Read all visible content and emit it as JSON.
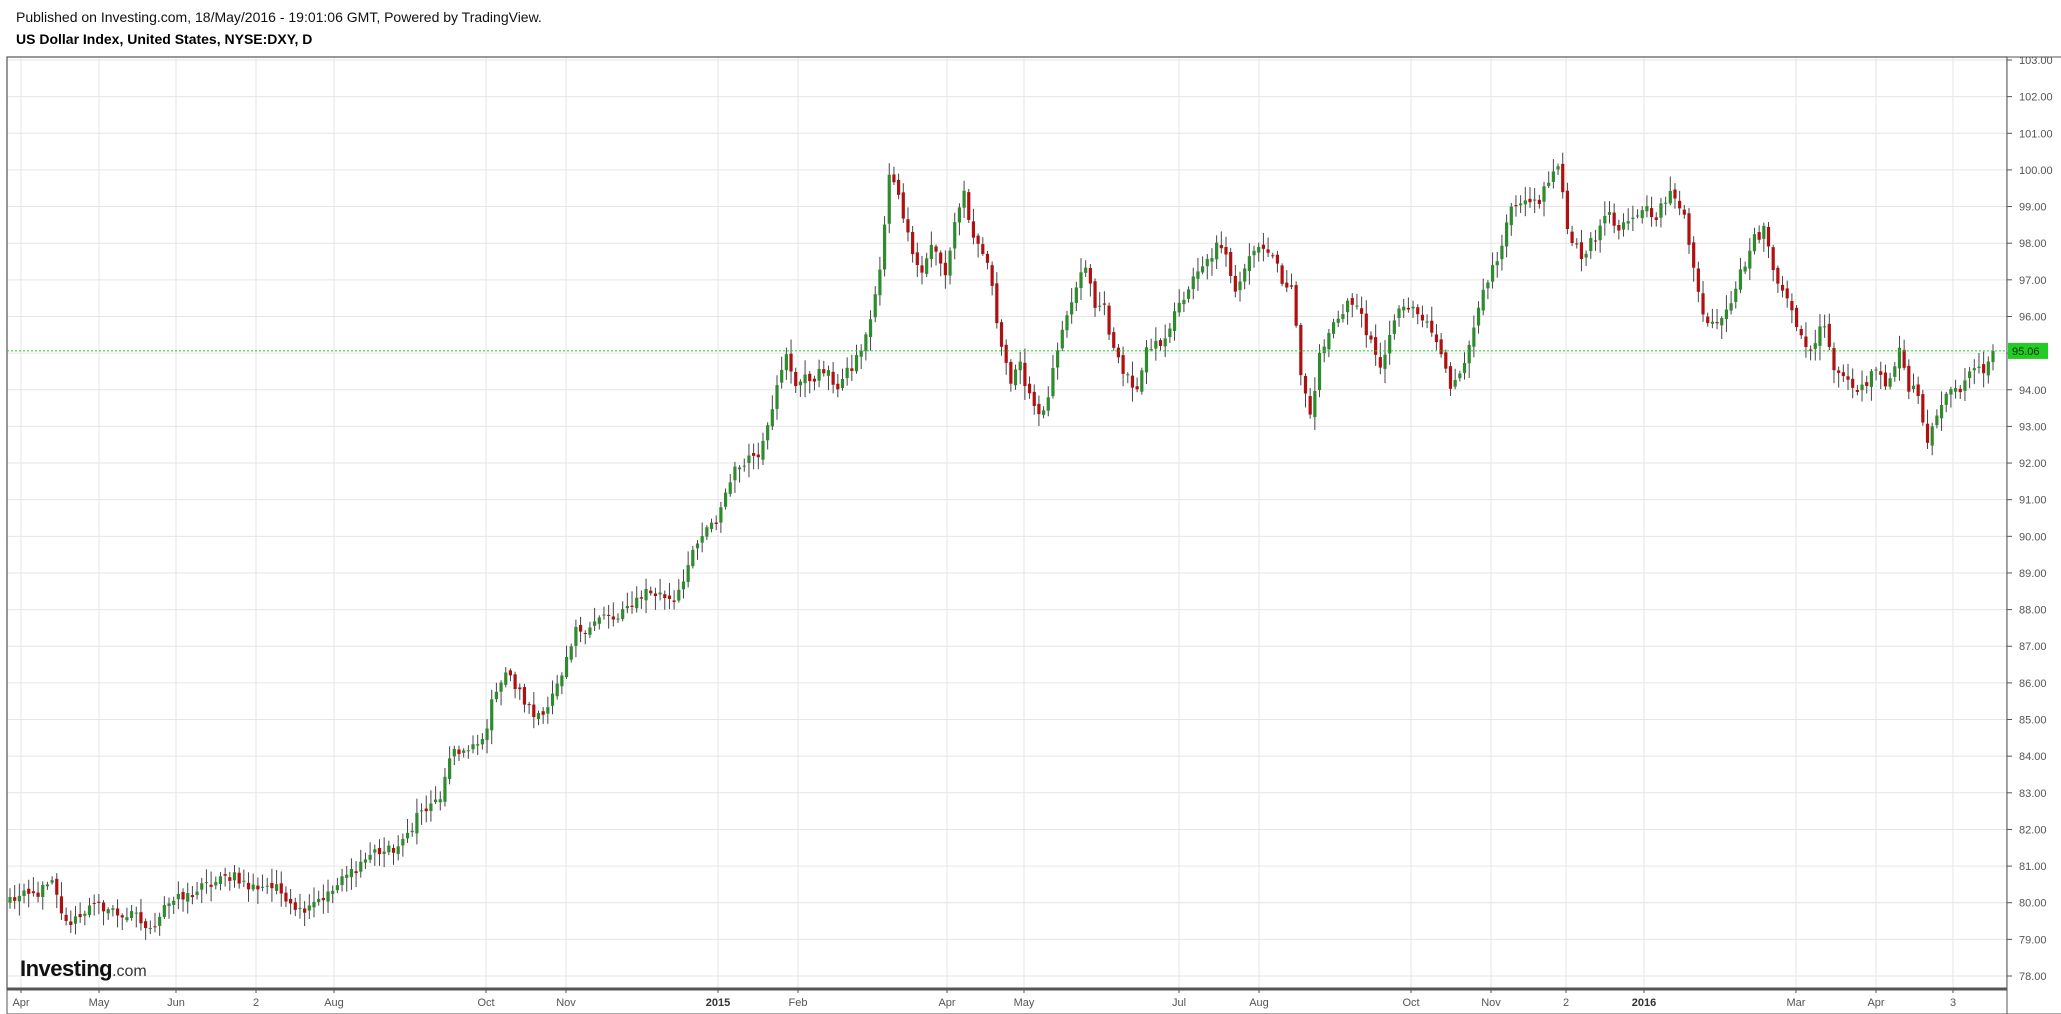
{
  "header": {
    "published": "Published on Investing.com, 18/May/2016 - 19:01:06 GMT, Powered by TradingView.",
    "symbol": "US Dollar Index, United States, NYSE:DXY, D"
  },
  "logo": {
    "main": "Investing",
    "sub": ".com"
  },
  "colors": {
    "up": "#2e8b2e",
    "down": "#b01010",
    "wick": "#444444",
    "grid": "#e6e6e6",
    "last_price_bg": "#22cc22",
    "last_price_line": "#22cc22"
  },
  "chart_data": {
    "type": "candlestick",
    "title": "US Dollar Index, United States, NYSE:DXY, D",
    "ylim": [
      77.6,
      103.0
    ],
    "y_ticks": [
      "78.00",
      "79.00",
      "80.00",
      "81.00",
      "82.00",
      "83.00",
      "84.00",
      "85.00",
      "86.00",
      "87.00",
      "88.00",
      "89.00",
      "90.00",
      "91.00",
      "92.00",
      "93.00",
      "94.00",
      "95.00",
      "96.00",
      "97.00",
      "98.00",
      "99.00",
      "100.00",
      "101.00",
      "102.00",
      "103.00"
    ],
    "x_labels": [
      {
        "label": "Apr",
        "bold": false
      },
      {
        "label": "May",
        "bold": false
      },
      {
        "label": "Jun",
        "bold": false
      },
      {
        "label": "2",
        "bold": false
      },
      {
        "label": "Aug",
        "bold": false
      },
      {
        "label": "Oct",
        "bold": false
      },
      {
        "label": "Nov",
        "bold": false
      },
      {
        "label": "2015",
        "bold": true
      },
      {
        "label": "Feb",
        "bold": false
      },
      {
        "label": "Apr",
        "bold": false
      },
      {
        "label": "May",
        "bold": false
      },
      {
        "label": "Jul",
        "bold": false
      },
      {
        "label": "Aug",
        "bold": false
      },
      {
        "label": "Oct",
        "bold": false
      },
      {
        "label": "Nov",
        "bold": false
      },
      {
        "label": "2",
        "bold": false
      },
      {
        "label": "2016",
        "bold": true
      },
      {
        "label": "Mar",
        "bold": false
      },
      {
        "label": "Apr",
        "bold": false
      },
      {
        "label": "3",
        "bold": false
      }
    ],
    "grid": true,
    "last_price": 95.06,
    "last_price_label": "95.06",
    "close_path": [
      [
        0,
        80.1
      ],
      [
        5,
        80.2
      ],
      [
        9,
        80.5
      ],
      [
        12,
        79.4
      ],
      [
        16,
        79.8
      ],
      [
        20,
        79.9
      ],
      [
        23,
        79.7
      ],
      [
        27,
        79.6
      ],
      [
        30,
        79.2
      ],
      [
        33,
        80.0
      ],
      [
        37,
        80.1
      ],
      [
        41,
        80.4
      ],
      [
        45,
        80.6
      ],
      [
        48,
        80.8
      ],
      [
        51,
        80.4
      ],
      [
        55,
        80.5
      ],
      [
        59,
        80.2
      ],
      [
        62,
        79.8
      ],
      [
        65,
        80.1
      ],
      [
        68,
        80.2
      ],
      [
        71,
        80.6
      ],
      [
        75,
        81.1
      ],
      [
        78,
        81.4
      ],
      [
        81,
        81.4
      ],
      [
        84,
        81.6
      ],
      [
        87,
        82.4
      ],
      [
        90,
        82.6
      ],
      [
        92,
        82.9
      ],
      [
        95,
        84.2
      ],
      [
        98,
        84.1
      ],
      [
        101,
        84.4
      ],
      [
        104,
        85.9
      ],
      [
        106,
        86.3
      ],
      [
        109,
        85.7
      ],
      [
        112,
        85.1
      ],
      [
        115,
        85.4
      ],
      [
        118,
        86.1
      ],
      [
        121,
        87.4
      ],
      [
        124,
        87.6
      ],
      [
        127,
        87.8
      ],
      [
        130,
        87.7
      ],
      [
        133,
        88.2
      ],
      [
        136,
        88.5
      ],
      [
        139,
        88.4
      ],
      [
        142,
        88.3
      ],
      [
        145,
        89.2
      ],
      [
        148,
        90.0
      ],
      [
        151,
        90.4
      ],
      [
        154,
        91.6
      ],
      [
        157,
        92.1
      ],
      [
        160,
        92.3
      ],
      [
        163,
        93.6
      ],
      [
        166,
        94.9
      ],
      [
        168,
        94.2
      ],
      [
        171,
        94.3
      ],
      [
        174,
        94.5
      ],
      [
        177,
        94.1
      ],
      [
        180,
        94.6
      ],
      [
        183,
        95.4
      ],
      [
        186,
        97.2
      ],
      [
        188,
        99.8
      ],
      [
        190,
        99.4
      ],
      [
        192,
        98.2
      ],
      [
        195,
        97.2
      ],
      [
        197,
        98.0
      ],
      [
        200,
        97.1
      ],
      [
        202,
        98.6
      ],
      [
        204,
        99.4
      ],
      [
        206,
        98.0
      ],
      [
        209,
        97.5
      ],
      [
        211,
        95.9
      ],
      [
        214,
        94.2
      ],
      [
        216,
        94.6
      ],
      [
        219,
        93.6
      ],
      [
        221,
        93.3
      ],
      [
        224,
        95.0
      ],
      [
        227,
        96.4
      ],
      [
        230,
        97.4
      ],
      [
        232,
        96.2
      ],
      [
        234,
        96.3
      ],
      [
        236,
        95.0
      ],
      [
        238,
        94.6
      ],
      [
        241,
        93.9
      ],
      [
        243,
        95.0
      ],
      [
        246,
        95.3
      ],
      [
        249,
        96.0
      ],
      [
        252,
        96.8
      ],
      [
        255,
        97.3
      ],
      [
        258,
        97.9
      ],
      [
        260,
        97.6
      ],
      [
        262,
        96.8
      ],
      [
        265,
        97.7
      ],
      [
        268,
        98.0
      ],
      [
        270,
        97.6
      ],
      [
        272,
        97.0
      ],
      [
        274,
        96.9
      ],
      [
        276,
        94.4
      ],
      [
        278,
        93.3
      ],
      [
        280,
        94.9
      ],
      [
        283,
        95.8
      ],
      [
        286,
        96.4
      ],
      [
        289,
        96.1
      ],
      [
        291,
        95.2
      ],
      [
        293,
        94.5
      ],
      [
        295,
        95.6
      ],
      [
        298,
        96.3
      ],
      [
        301,
        96.0
      ],
      [
        303,
        95.8
      ],
      [
        305,
        95.3
      ],
      [
        308,
        94.1
      ],
      [
        310,
        94.6
      ],
      [
        312,
        95.1
      ],
      [
        315,
        96.9
      ],
      [
        318,
        97.4
      ],
      [
        321,
        98.9
      ],
      [
        324,
        99.0
      ],
      [
        327,
        99.2
      ],
      [
        329,
        99.7
      ],
      [
        331,
        100.1
      ],
      [
        333,
        98.4
      ],
      [
        336,
        97.7
      ],
      [
        339,
        98.1
      ],
      [
        341,
        98.9
      ],
      [
        344,
        98.3
      ],
      [
        347,
        98.6
      ],
      [
        349,
        99.0
      ],
      [
        352,
        98.8
      ],
      [
        355,
        99.3
      ],
      [
        358,
        98.9
      ],
      [
        360,
        97.3
      ],
      [
        362,
        96.0
      ],
      [
        365,
        95.9
      ],
      [
        368,
        96.5
      ],
      [
        371,
        97.5
      ],
      [
        373,
        98.1
      ],
      [
        375,
        98.4
      ],
      [
        377,
        97.3
      ],
      [
        380,
        96.6
      ],
      [
        382,
        95.6
      ],
      [
        385,
        95.1
      ],
      [
        388,
        95.9
      ],
      [
        390,
        94.6
      ],
      [
        393,
        94.3
      ],
      [
        396,
        94.0
      ],
      [
        398,
        94.5
      ],
      [
        401,
        94.2
      ],
      [
        404,
        95.0
      ],
      [
        406,
        94.0
      ],
      [
        408,
        93.9
      ],
      [
        410,
        92.6
      ],
      [
        412,
        93.3
      ],
      [
        414,
        93.9
      ],
      [
        417,
        94.1
      ],
      [
        420,
        94.5
      ],
      [
        422,
        94.5
      ],
      [
        424,
        95.06
      ]
    ]
  }
}
